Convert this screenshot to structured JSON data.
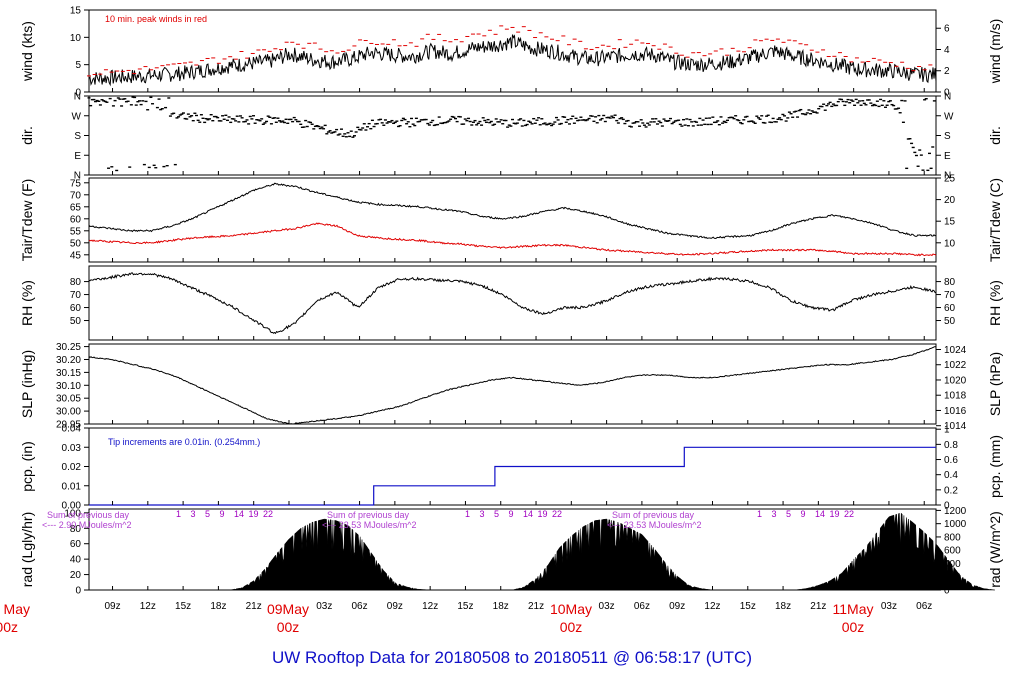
{
  "title": "UW Rooftop Data for 20180508  to  20180511 @ 06:58:17  (UTC)",
  "colors": {
    "title": "#1010c8",
    "peak": "#e00000",
    "dew": "#e00000",
    "precip": "#1010c8",
    "sum_note": "#b040d0",
    "date_label": "#e00000",
    "trace": "#000000"
  },
  "time_ticks": [
    "09z",
    "12z",
    "15z",
    "18z",
    "21z",
    "03z",
    "06z",
    "09z",
    "12z",
    "15z",
    "18z",
    "21z",
    "03z",
    "06z",
    "09z",
    "12z",
    "15z",
    "18z",
    "21z",
    "03z",
    "06z"
  ],
  "date_labels": [
    {
      "day": "May",
      "hour": "00z",
      "partial": true
    },
    {
      "day": "09May",
      "hour": "00z"
    },
    {
      "day": "10May",
      "hour": "00z"
    },
    {
      "day": "11May",
      "hour": "00z"
    }
  ],
  "chart_data": [
    {
      "id": "wind",
      "type": "line",
      "ylabel_left": "wind (kts)",
      "ylabel_right": "wind (m/s)",
      "ylim": [
        0,
        15
      ],
      "yticks_left": [
        "0",
        "5",
        "10",
        "15"
      ],
      "yticks_right": [
        "0",
        "2",
        "4",
        "6"
      ],
      "annotation": "10 min. peak winds in red",
      "series": [
        {
          "name": "wind",
          "values": [
            2.5,
            2.6,
            2.8,
            3,
            3.2,
            3.6,
            4.2,
            4.8,
            5.2,
            5.6,
            7,
            6,
            5.5,
            6,
            7.2,
            6.8,
            6.5,
            7.5,
            7,
            8,
            8.5,
            9.2,
            8,
            7.5,
            6.5,
            6,
            6.5,
            7,
            6.8,
            5.5,
            5,
            5.2,
            5.6,
            6.5,
            7.5,
            6.5,
            5.8,
            5,
            4.2,
            4,
            3.8,
            3.2,
            3.2
          ]
        },
        {
          "name": "peak",
          "values": [
            3.5,
            3.6,
            3.9,
            4.2,
            4.5,
            5,
            5.7,
            6.4,
            7,
            7.5,
            9.5,
            8.4,
            7.6,
            8.2,
            9.6,
            9.2,
            8.8,
            10,
            9.5,
            10.5,
            11,
            12,
            10.8,
            10,
            9,
            8.2,
            8.6,
            9.2,
            9,
            7.5,
            7,
            7.2,
            7.6,
            8.7,
            9.8,
            8.7,
            7.9,
            7,
            5.9,
            5.6,
            5.3,
            4.5,
            4.3
          ]
        }
      ]
    },
    {
      "id": "dir",
      "type": "scatter",
      "ylabel_left": "dir.",
      "ylabel_right": "dir.",
      "ylim": [
        0,
        360
      ],
      "yticks_left": [
        "N",
        "E",
        "S",
        "W",
        "N"
      ],
      "yticks_right": [
        "N",
        "E",
        "S",
        "W",
        "N"
      ],
      "series": [
        {
          "name": "direction",
          "values": [
            320,
            330,
            335,
            315,
            280,
            265,
            255,
            252,
            250,
            250,
            250,
            225,
            200,
            185,
            230,
            240,
            240,
            245,
            248,
            245,
            240,
            235,
            240,
            245,
            250,
            252,
            260,
            235,
            240,
            240,
            240,
            245,
            250,
            255,
            258,
            270,
            300,
            325,
            335,
            335,
            320,
            100,
            120
          ]
        }
      ]
    },
    {
      "id": "temp",
      "type": "line",
      "ylabel_left": "Tair/Tdew (F)",
      "ylabel_right": "Tair/Tdew (C)",
      "ylim": [
        42,
        77
      ],
      "yticks_left": [
        "45",
        "50",
        "55",
        "60",
        "65",
        "70",
        "75"
      ],
      "yticks_right": [
        "10",
        "15",
        "20",
        "25"
      ],
      "series": [
        {
          "name": "Tair",
          "values": [
            57,
            56,
            55,
            55,
            57,
            60,
            64,
            68,
            72,
            74.5,
            73.5,
            71,
            69,
            67,
            66,
            65.5,
            65,
            64,
            63,
            61,
            60,
            61,
            63,
            64.5,
            63,
            61,
            58,
            56,
            54,
            53,
            52,
            52.5,
            53,
            55,
            58,
            60,
            61.5,
            60,
            58,
            55,
            53,
            53
          ]
        },
        {
          "name": "Tdew",
          "values": [
            51,
            50.5,
            50,
            50,
            51,
            52,
            52.5,
            53,
            54,
            55,
            56,
            58,
            57,
            53,
            52,
            51.5,
            51,
            50,
            49.5,
            48.5,
            48,
            48.5,
            49,
            49,
            48,
            47,
            46.5,
            46,
            45.5,
            45,
            45.5,
            46,
            46.5,
            47,
            47,
            47,
            46.5,
            45.5,
            45.5,
            45.5,
            45,
            45
          ]
        }
      ]
    },
    {
      "id": "rh",
      "type": "line",
      "ylabel_left": "RH (%)",
      "ylabel_right": "RH (%)",
      "ylim": [
        35,
        92
      ],
      "yticks_left": [
        "50",
        "60",
        "70",
        "80"
      ],
      "yticks_right": [
        "50",
        "60",
        "70",
        "80"
      ],
      "series": [
        {
          "name": "RH",
          "values": [
            81,
            83,
            86,
            86,
            82,
            75,
            68,
            60,
            50,
            40,
            48,
            65,
            72,
            60,
            75,
            82,
            82,
            81,
            80,
            77,
            70,
            60,
            55,
            60,
            60,
            65,
            72,
            76,
            78,
            80,
            82,
            82,
            80,
            75,
            65,
            60,
            58,
            66,
            70,
            73,
            76,
            72
          ]
        }
      ]
    },
    {
      "id": "slp",
      "type": "line",
      "ylabel_left": "SLP (inHg)",
      "ylabel_right": "SLP (hPa)",
      "ylim": [
        29.95,
        30.26
      ],
      "yticks_left": [
        "29.95",
        "30.00",
        "30.05",
        "30.10",
        "30.15",
        "30.20",
        "30.25"
      ],
      "yticks_right": [
        "1014",
        "1016",
        "1018",
        "1020",
        "1022",
        "1024"
      ],
      "series": [
        {
          "name": "SLP",
          "values": [
            30.21,
            30.2,
            30.18,
            30.16,
            30.13,
            30.09,
            30.05,
            30.01,
            29.97,
            29.95,
            29.96,
            29.97,
            29.98,
            30,
            30.02,
            30.05,
            30.08,
            30.1,
            30.12,
            30.13,
            30.12,
            30.11,
            30.1,
            30.11,
            30.13,
            30.14,
            30.14,
            30.13,
            30.13,
            30.14,
            30.15,
            30.16,
            30.17,
            30.18,
            30.18,
            30.19,
            30.2,
            30.22,
            30.25
          ]
        }
      ]
    },
    {
      "id": "pcp",
      "type": "line",
      "ylabel_left": "pcp. (in)",
      "ylabel_right": "pcp. (mm)",
      "ylim": [
        0,
        0.04
      ],
      "yticks_left": [
        "0.00",
        "0.01",
        "0.02",
        "0.03",
        "0.04"
      ],
      "yticks_right": [
        "0",
        "0.2",
        "0.4",
        "0.6",
        "0.8",
        "1"
      ],
      "annotation": "Tip increments are 0.01in. (0.254mm.)",
      "x": [
        "05-08 07z",
        "05-09 01z",
        "05-09 02z",
        "05-09 09z",
        "05-10 00z",
        "05-11 07z"
      ],
      "values": [
        0,
        0,
        0.01,
        0.02,
        0.03,
        0.03
      ]
    },
    {
      "id": "rad",
      "type": "area",
      "ylabel_left": "rad (Lgly/hr)",
      "ylabel_right": "rad (W/m^2)",
      "ylim": [
        0,
        105
      ],
      "yticks_left": [
        "0",
        "20",
        "40",
        "60",
        "80",
        "100"
      ],
      "yticks_right": [
        "0",
        "200",
        "400",
        "600",
        "800",
        "1000",
        "1200"
      ],
      "hour_marks": [
        "1",
        "3",
        "5",
        "9",
        "14",
        "19",
        "22"
      ],
      "sum_notes": [
        {
          "line1": "Sum of previous day",
          "line2": "<--- 2.90 MJoules/m^2"
        },
        {
          "line1": "Sum of previous day",
          "line2": "<--- 23.53 MJoules/m^2"
        },
        {
          "line1": "Sum of previous day",
          "line2": "<--- 23.53 MJoules/m^2"
        }
      ],
      "series": [
        {
          "name": "day1",
          "x": [
            12,
            13,
            14,
            15,
            16,
            17,
            18,
            19,
            20,
            21,
            22,
            23,
            24,
            25,
            26,
            27,
            28,
            29
          ],
          "values": [
            0,
            3,
            12,
            28,
            48,
            66,
            80,
            88,
            92,
            90,
            84,
            70,
            48,
            26,
            10,
            4,
            1,
            0
          ]
        },
        {
          "name": "day2",
          "x": [
            36,
            37,
            38,
            39,
            40,
            41,
            42,
            43,
            44,
            45,
            46,
            47,
            48,
            49,
            50,
            51,
            52,
            53
          ],
          "values": [
            0,
            4,
            15,
            32,
            55,
            70,
            82,
            90,
            92,
            88,
            80,
            72,
            55,
            35,
            18,
            6,
            2,
            0
          ]
        },
        {
          "name": "day3",
          "x": [
            60,
            61,
            62,
            63,
            64,
            65,
            66,
            67,
            68,
            69,
            70,
            71,
            72,
            73,
            74,
            75,
            76,
            77
          ],
          "values": [
            0,
            2,
            6,
            12,
            22,
            40,
            55,
            75,
            95,
            100,
            88,
            75,
            60,
            40,
            20,
            8,
            2,
            0
          ]
        }
      ]
    }
  ]
}
